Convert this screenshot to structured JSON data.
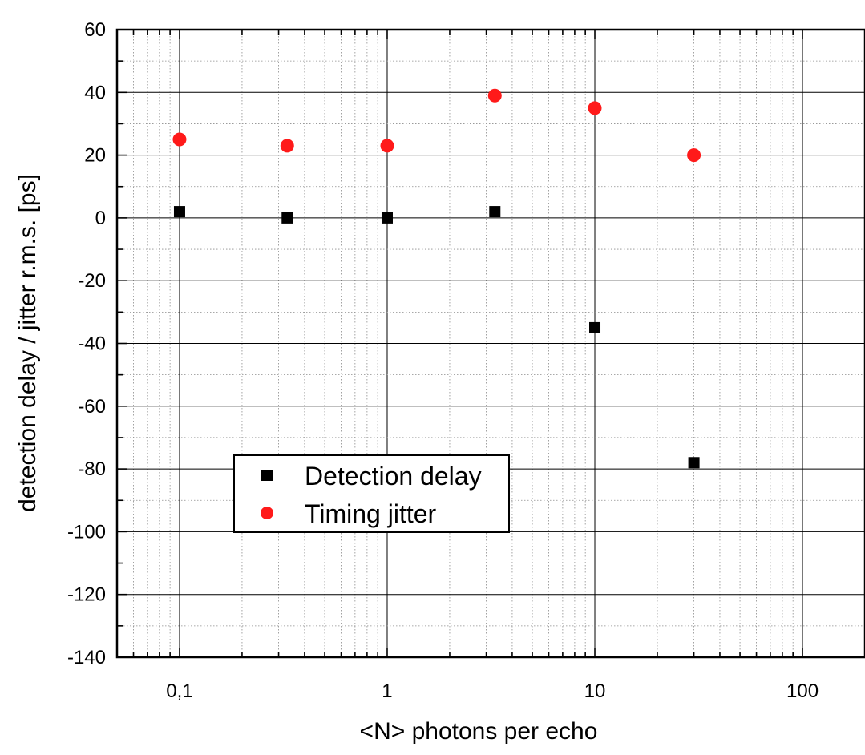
{
  "chart_data": {
    "type": "scatter",
    "xscale": "log",
    "xlim": [
      0.05,
      200
    ],
    "ylim": [
      -140,
      60
    ],
    "xlabel": "<N> photons per echo",
    "ylabel": "detection delay / jitter r.m.s. [ps]",
    "x_ticks": [
      {
        "value": 0.1,
        "label": "0,1"
      },
      {
        "value": 1,
        "label": "1"
      },
      {
        "value": 10,
        "label": "10"
      },
      {
        "value": 100,
        "label": "100"
      }
    ],
    "y_ticks": [
      60,
      40,
      20,
      0,
      -20,
      -40,
      -60,
      -80,
      -100,
      -120,
      -140
    ],
    "grid": true,
    "legend_position": "lower-left",
    "series": [
      {
        "name": "Detection delay",
        "marker": "square",
        "color": "#000000",
        "points": [
          {
            "x": 0.1,
            "y": 2
          },
          {
            "x": 0.33,
            "y": 0
          },
          {
            "x": 1,
            "y": 0
          },
          {
            "x": 3.3,
            "y": 2
          },
          {
            "x": 10,
            "y": -35
          },
          {
            "x": 30,
            "y": -78
          }
        ]
      },
      {
        "name": "Timing jitter",
        "marker": "circle",
        "color": "#ff1a1a",
        "points": [
          {
            "x": 0.1,
            "y": 25
          },
          {
            "x": 0.33,
            "y": 23
          },
          {
            "x": 1,
            "y": 23
          },
          {
            "x": 3.3,
            "y": 39
          },
          {
            "x": 10,
            "y": 35
          },
          {
            "x": 30,
            "y": 20
          }
        ]
      }
    ]
  }
}
